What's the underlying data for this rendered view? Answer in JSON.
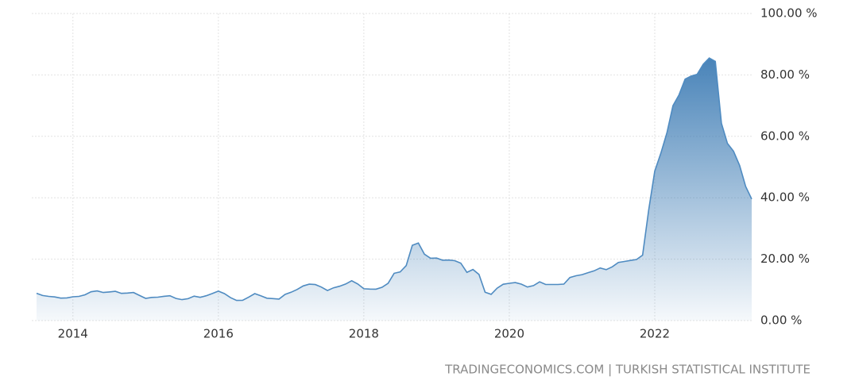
{
  "chart_data": {
    "type": "area",
    "source": "TRADINGECONOMICS.COM | TURKISH STATISTICAL INSTITUTE",
    "x": [
      2013.5,
      2013.583,
      2013.667,
      2013.75,
      2013.833,
      2013.917,
      2014,
      2014.083,
      2014.167,
      2014.25,
      2014.333,
      2014.417,
      2014.5,
      2014.583,
      2014.667,
      2014.75,
      2014.833,
      2014.917,
      2015,
      2015.083,
      2015.167,
      2015.25,
      2015.333,
      2015.417,
      2015.5,
      2015.583,
      2015.667,
      2015.75,
      2015.833,
      2015.917,
      2016,
      2016.083,
      2016.167,
      2016.25,
      2016.333,
      2016.417,
      2016.5,
      2016.583,
      2016.667,
      2016.75,
      2016.833,
      2016.917,
      2017,
      2017.083,
      2017.167,
      2017.25,
      2017.333,
      2017.417,
      2017.5,
      2017.583,
      2017.667,
      2017.75,
      2017.833,
      2017.917,
      2018,
      2018.083,
      2018.167,
      2018.25,
      2018.333,
      2018.417,
      2018.5,
      2018.583,
      2018.667,
      2018.75,
      2018.833,
      2018.917,
      2019,
      2019.083,
      2019.167,
      2019.25,
      2019.333,
      2019.417,
      2019.5,
      2019.583,
      2019.667,
      2019.75,
      2019.833,
      2019.917,
      2020,
      2020.083,
      2020.167,
      2020.25,
      2020.333,
      2020.417,
      2020.5,
      2020.583,
      2020.667,
      2020.75,
      2020.833,
      2020.917,
      2021,
      2021.083,
      2021.167,
      2021.25,
      2021.333,
      2021.417,
      2021.5,
      2021.583,
      2021.667,
      2021.75,
      2021.833,
      2021.917,
      2022,
      2022.083,
      2022.167,
      2022.25,
      2022.333,
      2022.417,
      2022.5,
      2022.583,
      2022.667,
      2022.75,
      2022.833,
      2022.917,
      2023,
      2023.083,
      2023.167,
      2023.25,
      2023.333
    ],
    "values": [
      8.88,
      8.17,
      7.88,
      7.71,
      7.32,
      7.4,
      7.75,
      7.89,
      8.39,
      9.38,
      9.66,
      9.16,
      9.32,
      9.54,
      8.86,
      8.96,
      9.15,
      8.17,
      7.24,
      7.55,
      7.61,
      7.91,
      8.09,
      7.2,
      6.81,
      7.14,
      7.95,
      7.58,
      8.1,
      8.81,
      9.58,
      8.78,
      7.46,
      6.57,
      6.58,
      7.64,
      8.79,
      8.05,
      7.28,
      7.16,
      7.0,
      8.53,
      9.22,
      10.13,
      11.29,
      11.87,
      11.72,
      10.9,
      9.79,
      10.68,
      11.2,
      11.9,
      12.98,
      11.92,
      10.35,
      10.26,
      10.23,
      10.85,
      12.15,
      15.39,
      15.85,
      17.9,
      24.52,
      25.24,
      21.62,
      20.3,
      20.35,
      19.67,
      19.71,
      19.5,
      18.71,
      15.72,
      16.65,
      15.01,
      9.26,
      8.55,
      10.56,
      11.84,
      12.15,
      12.37,
      11.86,
      10.94,
      11.39,
      12.62,
      11.76,
      11.77,
      11.75,
      11.89,
      14.03,
      14.6,
      14.97,
      15.61,
      16.19,
      17.14,
      16.59,
      17.53,
      18.95,
      19.25,
      19.58,
      19.89,
      21.31,
      36.08,
      48.69,
      54.44,
      61.14,
      69.97,
      73.5,
      78.62,
      79.6,
      80.21,
      83.45,
      85.51,
      84.39,
      64.27,
      57.68,
      55.18,
      50.51,
      43.68,
      39.59
    ],
    "color": "#4f8bc1",
    "xlim": [
      2013.5,
      2023.333
    ],
    "xticks": [
      2014,
      2016,
      2018,
      2020,
      2022
    ],
    "ylim": [
      0,
      100
    ],
    "yticks": [
      {
        "value": 0,
        "label": "0.00 %"
      },
      {
        "value": 20,
        "label": "20.00 %"
      },
      {
        "value": 40,
        "label": "40.00 %"
      },
      {
        "value": 60,
        "label": "60.00 %"
      },
      {
        "value": 80,
        "label": "80.00 %"
      },
      {
        "value": 100,
        "label": "100.00 %"
      }
    ],
    "grid": true
  }
}
